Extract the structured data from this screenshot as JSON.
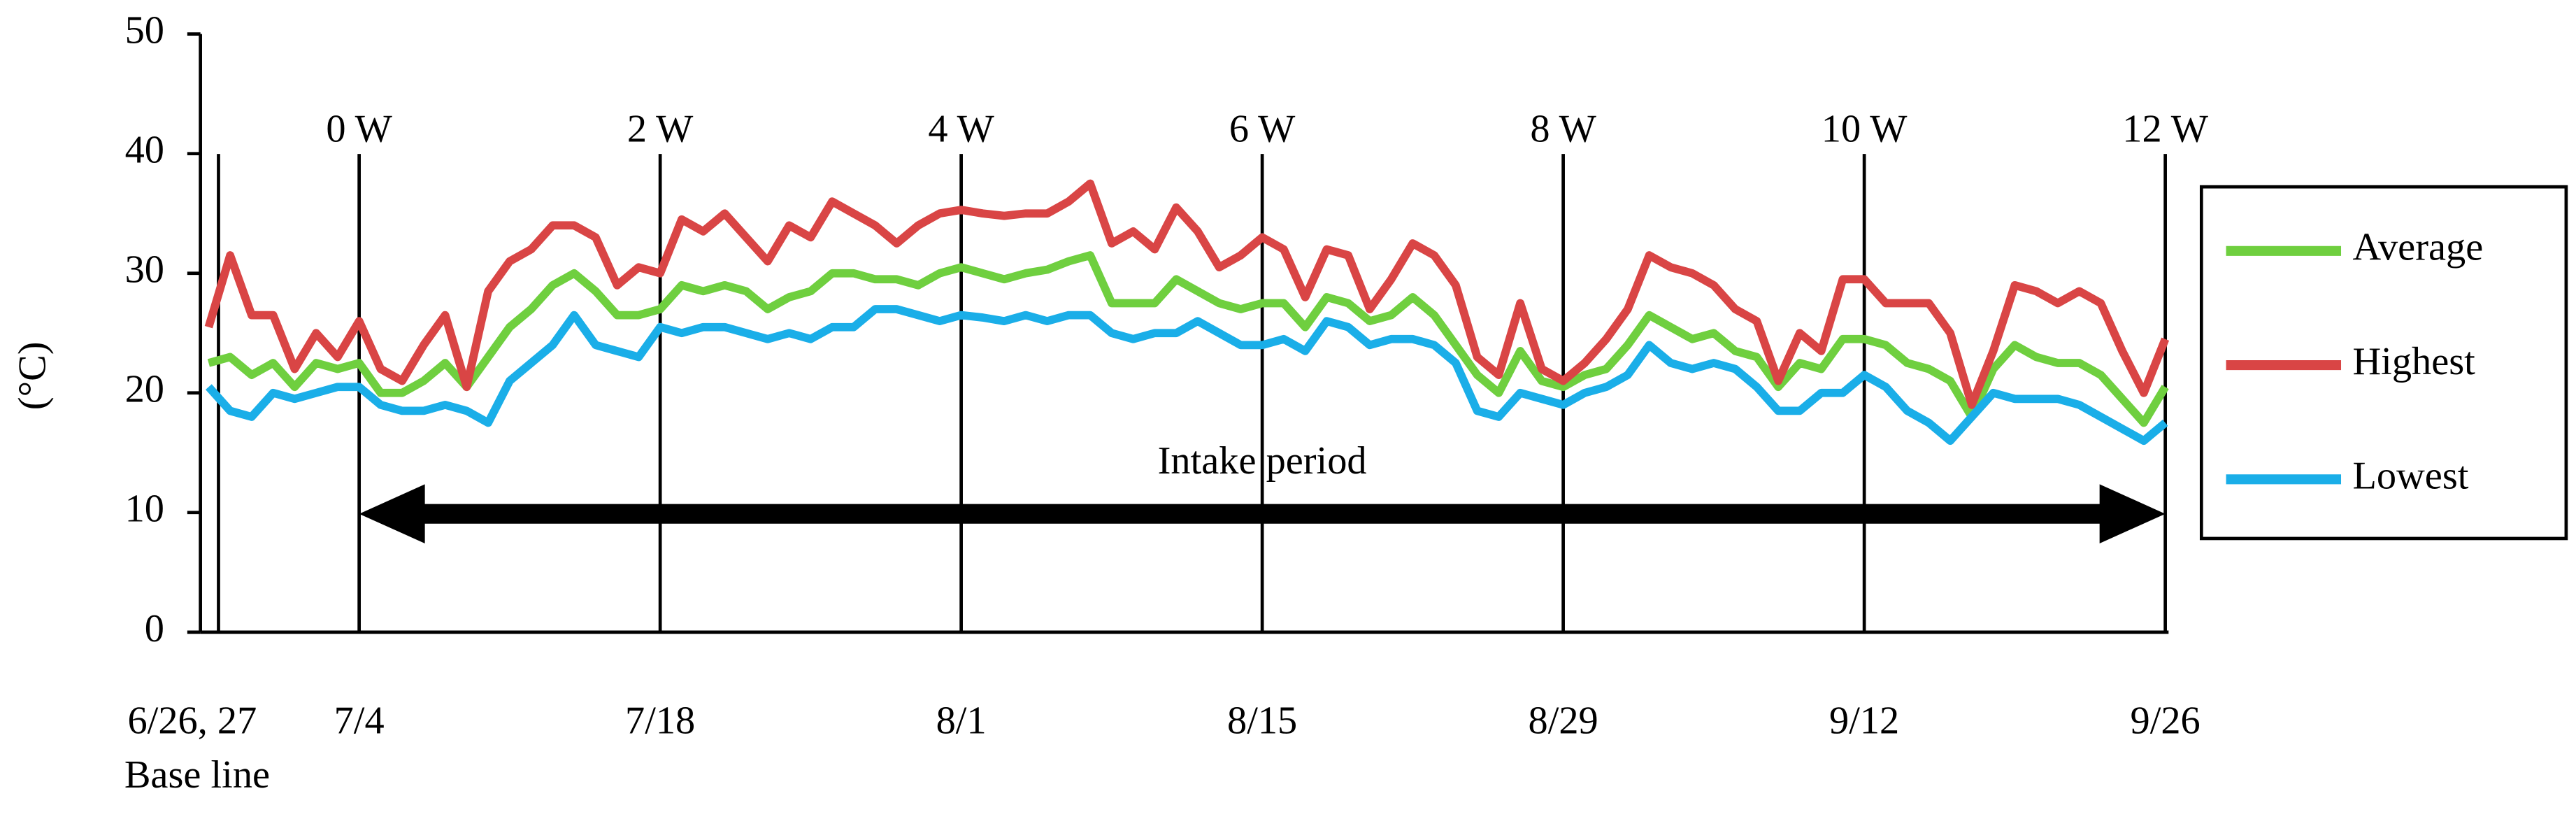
{
  "chart_data": {
    "type": "line",
    "y_label": "(°C)",
    "ylim": [
      0,
      50
    ],
    "yticks": [
      0,
      10,
      20,
      30,
      40,
      50
    ],
    "categories": [
      "6/26, 27",
      null,
      null,
      null,
      null,
      null,
      null,
      "7/4",
      null,
      null,
      null,
      null,
      null,
      null,
      null,
      null,
      null,
      null,
      null,
      null,
      null,
      "7/18",
      null,
      null,
      null,
      null,
      null,
      null,
      null,
      null,
      null,
      null,
      null,
      null,
      null,
      "8/1",
      null,
      null,
      null,
      null,
      null,
      null,
      null,
      null,
      null,
      null,
      null,
      null,
      null,
      "8/15",
      null,
      null,
      null,
      null,
      null,
      null,
      null,
      null,
      null,
      null,
      null,
      null,
      null,
      "8/29",
      null,
      null,
      null,
      null,
      null,
      null,
      null,
      null,
      null,
      null,
      null,
      null,
      null,
      "9/12",
      null,
      null,
      null,
      null,
      null,
      null,
      null,
      null,
      null,
      null,
      null,
      null,
      null,
      "9/26"
    ],
    "baseline_label": "Base line",
    "week_labels": [
      "0 W",
      "2 W",
      "4 W",
      "6 W",
      "8 W",
      "10 W",
      "12 W"
    ],
    "intake_label": "Intake period",
    "series": [
      {
        "name": "Average",
        "color": "#6fcf3f",
        "values": [
          22.5,
          23,
          21.5,
          22.5,
          20.5,
          22.5,
          22,
          22.5,
          20,
          20,
          21,
          22.5,
          20.5,
          23,
          25.5,
          27,
          29,
          30,
          28.5,
          26.5,
          26.5,
          27,
          29,
          28.5,
          29,
          28.5,
          27,
          28,
          28.5,
          30,
          30,
          29.5,
          29.5,
          29,
          30,
          30.5,
          30,
          29.5,
          30,
          30.3,
          31,
          31.5,
          27.5,
          27.5,
          27.5,
          29.5,
          28.5,
          27.5,
          27,
          27.5,
          27.5,
          25.5,
          28,
          27.5,
          26,
          26.5,
          28,
          26.5,
          24,
          21.5,
          20,
          23.5,
          21,
          20.5,
          21.5,
          22,
          24,
          26.5,
          25.5,
          24.5,
          25,
          23.5,
          23,
          20.5,
          22.5,
          22,
          24.5,
          24.5,
          24,
          22.5,
          22,
          21,
          18,
          22,
          24,
          23,
          22.5,
          22.5,
          21.5,
          19.5,
          17.5,
          20.5
        ]
      },
      {
        "name": "Highest",
        "color": "#d94545",
        "values": [
          25.5,
          31.5,
          26.5,
          26.5,
          22,
          25,
          23,
          26,
          22,
          21,
          24,
          26.5,
          20.5,
          28.5,
          31,
          32,
          34,
          34,
          33,
          29,
          30.5,
          30,
          34.5,
          33.5,
          35,
          33,
          31,
          34,
          33,
          36,
          35,
          34,
          32.5,
          34,
          35,
          35.3,
          35,
          34.8,
          35,
          35,
          36,
          37.5,
          32.5,
          33.5,
          32,
          35.5,
          33.5,
          30.5,
          31.5,
          33,
          32,
          28,
          32,
          31.5,
          27,
          29.5,
          32.5,
          31.5,
          29,
          23,
          21.5,
          27.5,
          22,
          21,
          22.5,
          24.5,
          27,
          31.5,
          30.5,
          30,
          29,
          27,
          26,
          21,
          25,
          23.5,
          29.5,
          29.5,
          27.5,
          27.5,
          27.5,
          25,
          19,
          23.5,
          29,
          28.5,
          27.5,
          28.5,
          27.5,
          23.5,
          20,
          24.5
        ]
      },
      {
        "name": "Lowest",
        "color": "#1aaee8",
        "values": [
          20.5,
          18.5,
          18,
          20,
          19.5,
          20,
          20.5,
          20.5,
          19,
          18.5,
          18.5,
          19,
          18.5,
          17.5,
          21,
          22.5,
          24,
          26.5,
          24,
          23.5,
          23,
          25.5,
          25,
          25.5,
          25.5,
          25,
          24.5,
          25,
          24.5,
          25.5,
          25.5,
          27,
          27,
          26.5,
          26,
          26.5,
          26.3,
          26,
          26.5,
          26,
          26.5,
          26.5,
          25,
          24.5,
          25,
          25,
          26,
          25,
          24,
          24,
          24.5,
          23.5,
          26,
          25.5,
          24,
          24.5,
          24.5,
          24,
          22.5,
          18.5,
          18,
          20,
          19.5,
          19,
          20,
          20.5,
          21.5,
          24,
          22.5,
          22,
          22.5,
          22,
          20.5,
          18.5,
          18.5,
          20,
          20,
          21.5,
          20.5,
          18.5,
          17.5,
          16,
          18,
          20,
          19.5,
          19.5,
          19.5,
          19,
          18,
          17,
          16,
          17.5
        ]
      }
    ]
  }
}
